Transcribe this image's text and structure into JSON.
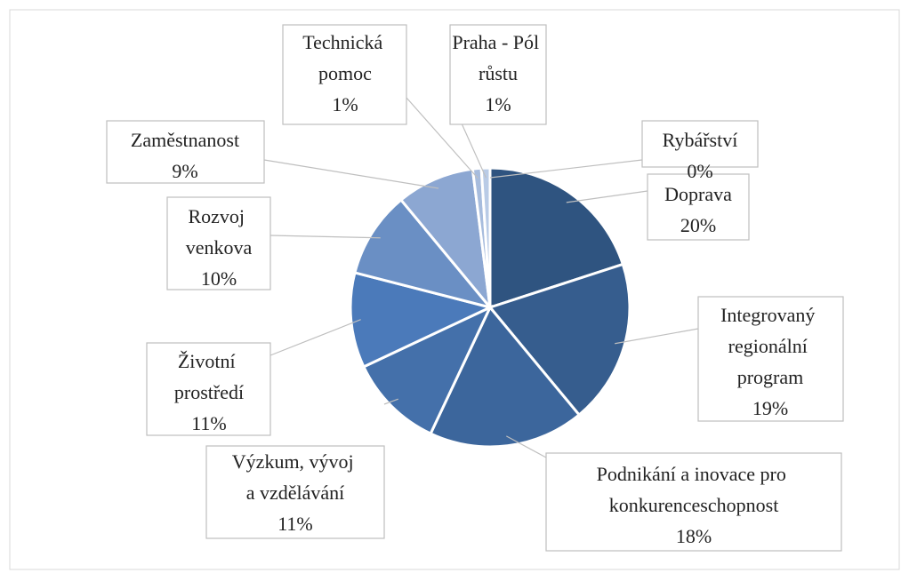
{
  "chart_data": {
    "type": "pie",
    "categories": [
      "Doprava",
      "Integrovaný regionální program",
      "Podnikání a inovace pro konkurenceschopnost",
      "Výzkum, vývoj a vzdělávání",
      "Životní prostředí",
      "Rozvoj venkova",
      "Zaměstnanost",
      "Technická pomoc",
      "Praha - Pól růstu",
      "Rybářství"
    ],
    "values": [
      20,
      19,
      18,
      11,
      11,
      10,
      9,
      1,
      1,
      0
    ],
    "value_labels": [
      "20%",
      "19%",
      "18%",
      "11%",
      "11%",
      "10%",
      "9%",
      "1%",
      "1%",
      "0%"
    ],
    "colors": [
      "#2f5480",
      "#365d8e",
      "#3c669c",
      "#4470aa",
      "#4b7aba",
      "#6a8fc4",
      "#8ca7d2",
      "#a7bcdd",
      "#b9cbe6",
      "#cbd8ee"
    ]
  }
}
